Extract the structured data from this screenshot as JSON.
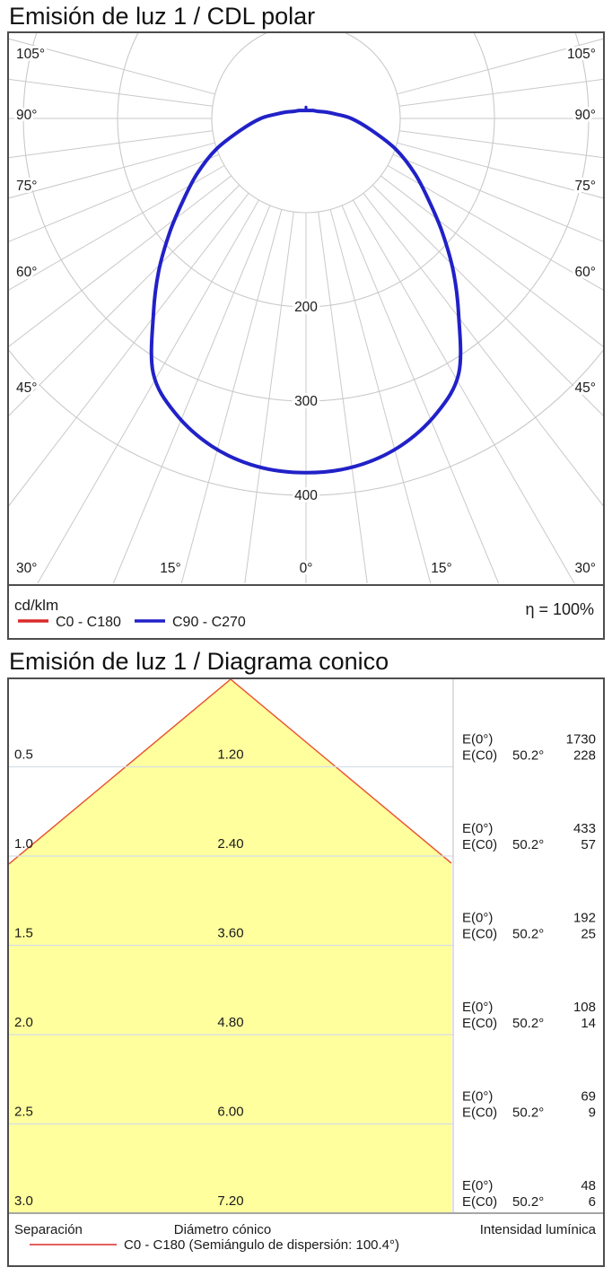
{
  "page": {
    "background": "#ffffff"
  },
  "polar_chart": {
    "title": "Emisión de luz 1 / CDL polar",
    "unit_label": "cd/klm",
    "efficiency_label": "η = 100%",
    "legend": [
      {
        "label": "C0 - C180",
        "color": "#d92b2b"
      },
      {
        "label": "C90 - C270",
        "color": "#2121c8"
      }
    ]
  },
  "cone_chart": {
    "title": "Emisión de luz 1 / Diagrama conico",
    "e0_label": "E(0°)",
    "ec0_label": "E(C0)",
    "footer_columns": [
      "Separación",
      "Diámetro cónico",
      "Intensidad lumínica"
    ],
    "footer_legend": "C0 - C180 (Semiángulo de dispersión: 100.4°)",
    "footer_legend_color": "#d92b2b",
    "cone_fill": "#ffff9e",
    "cone_edge_color": "#e8502d"
  },
  "chart_data": [
    {
      "type": "line",
      "subtype": "polar-intensity-diagram",
      "title": "Emisión de luz 1 / CDL polar",
      "units": "cd/klm",
      "efficiency": "η = 100%",
      "angle_ticks_deg": [
        0,
        15,
        30,
        45,
        60,
        75,
        90,
        105
      ],
      "minor_angle_step_deg": 7.5,
      "radial_ticks": [
        100,
        200,
        300,
        400
      ],
      "radial_tick_labels": [
        "200",
        "300",
        "400"
      ],
      "series": [
        {
          "name": "C0 - C180",
          "color": "#d92b2b",
          "gamma_deg": [
            0,
            8,
            16,
            24,
            31,
            38,
            44,
            50.2,
            56,
            63,
            71,
            80,
            90,
            99,
            108,
            120,
            140,
            160,
            172,
            177
          ],
          "cd_per_klm": [
            376,
            373,
            362,
            342,
            315,
            263,
            225,
            188,
            158,
            130,
            101,
            70,
            48,
            31,
            22,
            15,
            11,
            9,
            8.5,
            8.5
          ]
        },
        {
          "name": "C90 - C270",
          "color": "#2121c8",
          "gamma_deg": [
            0,
            8,
            16,
            24,
            31,
            38,
            44,
            50.2,
            56,
            63,
            71,
            80,
            90,
            99,
            108,
            120,
            140,
            160,
            172,
            177
          ],
          "cd_per_klm": [
            376,
            373,
            362,
            342,
            315,
            263,
            225,
            188,
            158,
            130,
            101,
            70,
            48,
            31,
            22,
            15,
            11,
            9,
            8.5,
            8.5
          ]
        }
      ],
      "zenith_spike_cd_per_klm": 12
    },
    {
      "type": "table",
      "subtype": "cone-diagram",
      "title": "Emisión de luz 1 / Diagrama conico",
      "columns": [
        "Separación",
        "Diámetro cónico",
        "Intensidad lumínica"
      ],
      "beam_half_angle_deg": 50.2,
      "full_dispersion_angle_deg": 100.4,
      "rows": [
        {
          "separation": "0.5",
          "diameter": "1.20",
          "e0": "1730",
          "half_angle": "50.2°",
          "ec0": "228"
        },
        {
          "separation": "1.0",
          "diameter": "2.40",
          "e0": "433",
          "half_angle": "50.2°",
          "ec0": "57"
        },
        {
          "separation": "1.5",
          "diameter": "3.60",
          "e0": "192",
          "half_angle": "50.2°",
          "ec0": "25"
        },
        {
          "separation": "2.0",
          "diameter": "4.80",
          "e0": "108",
          "half_angle": "50.2°",
          "ec0": "14"
        },
        {
          "separation": "2.5",
          "diameter": "6.00",
          "e0": "69",
          "half_angle": "50.2°",
          "ec0": "9"
        },
        {
          "separation": "3.0",
          "diameter": "7.20",
          "e0": "48",
          "half_angle": "50.2°",
          "ec0": "6"
        }
      ]
    }
  ]
}
